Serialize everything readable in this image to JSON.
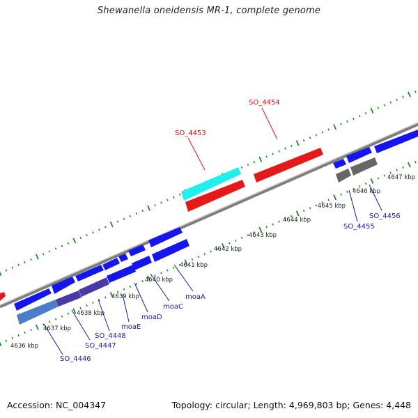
{
  "title": "Shewanella oneidensis MR-1, complete genome",
  "footer": {
    "accession": "Accession: NC_004347",
    "summary": "Topology: circular; Length: 4,969,803 bp; Genes: 4,448"
  },
  "colors": {
    "forward": "#1515ee",
    "reverse": "#1515ee",
    "highlight_red": "#e41a1a",
    "highlight_cyan": "#22eeee",
    "grey": "#666666",
    "backbone": "#888888",
    "ticks": "#1e8a1e",
    "label_blue": "#1a1aaa",
    "label_red": "#dd1111"
  },
  "kbp_labels": [
    "4636 kbp",
    "4637 kbp",
    "4638 kbp",
    "4639 kbp",
    "4640 kbp",
    "4641 kbp",
    "4642 kbp",
    "4643 kbp",
    "4644 kbp",
    "4645 kbp",
    "4646 kbp",
    "4647 kbp"
  ],
  "gene_labels": [
    "SO_4454",
    "SO_4453",
    "SO_4455",
    "SO_4456",
    "moaA",
    "moaC",
    "moaD",
    "moaE",
    "SO_4448",
    "SO_4447",
    "SO_4446"
  ]
}
